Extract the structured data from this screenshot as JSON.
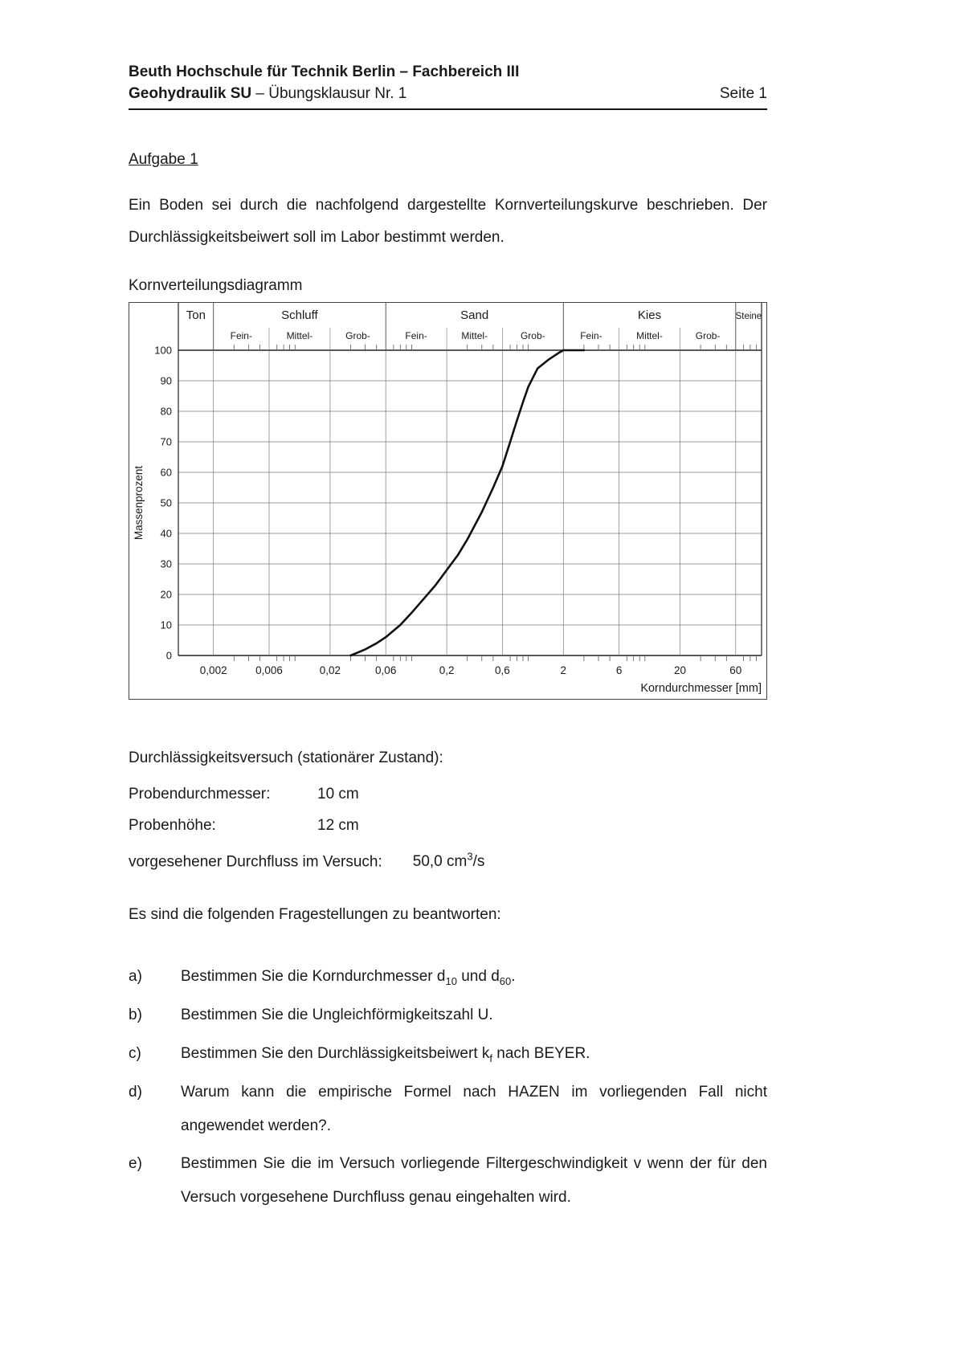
{
  "header": {
    "line1": "Beuth Hochschule für Technik Berlin – Fachbereich III",
    "line2_bold": "Geohydraulik SU",
    "line2_rest": " – Übungsklausur Nr. 1",
    "page": "Seite 1"
  },
  "aufgabe_title": "Aufgabe 1",
  "intro": "Ein Boden sei durch die nachfolgend dargestellte Kornverteilungskurve beschrieben. Der Durchlässigkeitsbeiwert soll im Labor bestimmt werden.",
  "chart_caption": "Kornverteilungsdiagramm",
  "chart_data": {
    "type": "line",
    "title": "Kornverteilungsdiagramm",
    "xlabel": "Korndurchmesser [mm]",
    "ylabel": "Massenprozent",
    "x_scale": "log",
    "xlim": [
      0.001,
      100
    ],
    "ylim": [
      0,
      100
    ],
    "grid": true,
    "legend": "none",
    "y_ticks": [
      0,
      10,
      20,
      30,
      40,
      50,
      60,
      70,
      80,
      90,
      100
    ],
    "x_ticks": [
      {
        "v": 0.002,
        "label": "0,002"
      },
      {
        "v": 0.006,
        "label": "0,006"
      },
      {
        "v": 0.02,
        "label": "0,02"
      },
      {
        "v": 0.06,
        "label": "0,06"
      },
      {
        "v": 0.2,
        "label": "0,2"
      },
      {
        "v": 0.6,
        "label": "0,6"
      },
      {
        "v": 2,
        "label": "2"
      },
      {
        "v": 6,
        "label": "6"
      },
      {
        "v": 20,
        "label": "20"
      },
      {
        "v": 60,
        "label": "60"
      }
    ],
    "bands": [
      {
        "label": "Ton",
        "from": 0.001,
        "to": 0.002,
        "subs": []
      },
      {
        "label": "Schluff",
        "from": 0.002,
        "to": 0.06,
        "subs": [
          {
            "label": "Fein-",
            "to": 0.006
          },
          {
            "label": "Mittel-",
            "to": 0.02
          },
          {
            "label": "Grob-",
            "to": 0.06
          }
        ]
      },
      {
        "label": "Sand",
        "from": 0.06,
        "to": 2,
        "subs": [
          {
            "label": "Fein-",
            "to": 0.2
          },
          {
            "label": "Mittel-",
            "to": 0.6
          },
          {
            "label": "Grob-",
            "to": 2
          }
        ]
      },
      {
        "label": "Kies",
        "from": 2,
        "to": 60,
        "subs": [
          {
            "label": "Fein-",
            "to": 6
          },
          {
            "label": "Mittel-",
            "to": 20
          },
          {
            "label": "Grob-",
            "to": 60
          }
        ]
      },
      {
        "label": "Steine",
        "from": 60,
        "to": 100,
        "subs": []
      }
    ],
    "series": [
      {
        "name": "Kornverteilungskurve",
        "points": [
          [
            0.03,
            0
          ],
          [
            0.04,
            2
          ],
          [
            0.05,
            4
          ],
          [
            0.06,
            6
          ],
          [
            0.08,
            10
          ],
          [
            0.1,
            14
          ],
          [
            0.13,
            19
          ],
          [
            0.16,
            23
          ],
          [
            0.2,
            28
          ],
          [
            0.25,
            33
          ],
          [
            0.3,
            38
          ],
          [
            0.4,
            47
          ],
          [
            0.5,
            55
          ],
          [
            0.6,
            62
          ],
          [
            0.7,
            70
          ],
          [
            0.8,
            77
          ],
          [
            0.9,
            83
          ],
          [
            1.0,
            88
          ],
          [
            1.2,
            94
          ],
          [
            1.5,
            97
          ],
          [
            1.8,
            99
          ],
          [
            2.0,
            100
          ],
          [
            3.0,
            100
          ]
        ]
      }
    ]
  },
  "versuch": {
    "title": "Durchlässigkeitsversuch (stationärer Zustand):",
    "rows": [
      {
        "label": "Probendurchmesser:",
        "value": "10 cm"
      },
      {
        "label": "Probenhöhe:",
        "value": "12 cm"
      }
    ],
    "durchfluss_label": "vorgesehener Durchfluss im Versuch:",
    "durchfluss_value_pre": "50,0 cm",
    "durchfluss_sup": "3",
    "durchfluss_post": "/s"
  },
  "fragen": {
    "intro": "Es sind die folgenden Fragestellungen zu beantworten:",
    "a": {
      "label": "a)",
      "pre": "Bestimmen Sie die Korndurchmesser d",
      "sub1": "10",
      "mid": " und d",
      "sub2": "60",
      "post": "."
    },
    "b": {
      "label": "b)",
      "text": "Bestimmen Sie die Ungleichförmigkeitszahl U."
    },
    "c": {
      "label": "c)",
      "pre": "Bestimmen Sie den Durchlässigkeitsbeiwert k",
      "sub1": "f",
      "post": " nach BEYER."
    },
    "d": {
      "label": "d)",
      "text": "Warum kann die empirische Formel nach HAZEN im vorliegenden Fall nicht angewendet werden?."
    },
    "e": {
      "label": "e)",
      "text": "Bestimmen Sie die im Versuch vorliegende Filtergeschwindigkeit v wenn der für den Versuch vorgesehene Durchfluss genau eingehalten wird."
    }
  }
}
